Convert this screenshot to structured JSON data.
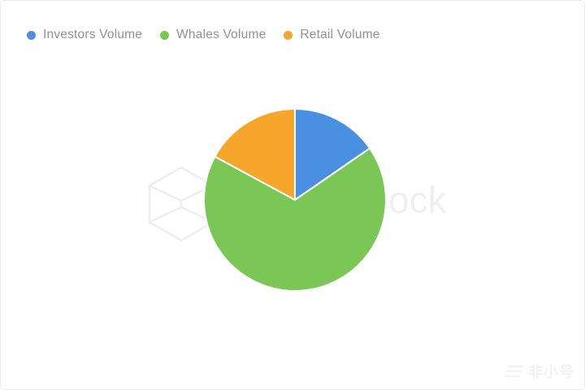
{
  "chart_data": {
    "type": "pie",
    "title": "",
    "legend_position": "top-left",
    "direction": "clockwise",
    "start_angle_deg_from_top": 0,
    "slice_border_color": "#ffffff",
    "center": {
      "x": 362,
      "y": 245
    },
    "radius": 112,
    "series": [
      {
        "name": "Investors Volume",
        "value": 15.4,
        "color": "#4A90E2"
      },
      {
        "name": "Whales Volume",
        "value": 67.5,
        "color": "#7AC756"
      },
      {
        "name": "Retail Volume",
        "value": 17.1,
        "color": "#F5A62B"
      }
    ]
  },
  "watermarks": {
    "center_icon": "wireframe-cube-icon",
    "center_text": "ock",
    "center_color": "#efefef",
    "bottom_right_icon": "stacked-layers-icon",
    "bottom_right_text": "非小号",
    "bottom_right_color": "#f0f1f2"
  },
  "card": {
    "background": "#ffffff",
    "border_color": "#ebebeb"
  }
}
